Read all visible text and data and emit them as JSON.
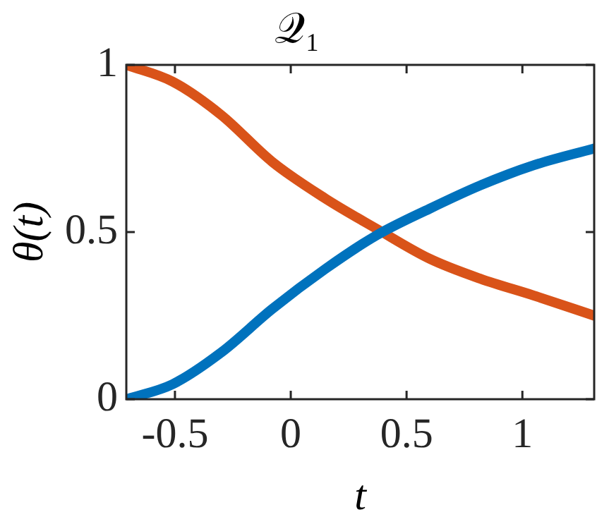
{
  "chart_data": {
    "type": "line",
    "title": "𝒬₁",
    "xlabel": "t",
    "ylabel": "θ(t)",
    "xlim": [
      -0.71,
      1.31
    ],
    "xticks": [
      -0.5,
      0,
      0.5,
      1
    ],
    "ylim": [
      0,
      1
    ],
    "yticks": [
      0,
      0.5,
      1
    ],
    "grid": false,
    "legend": false,
    "marker": "none",
    "line_style": "solid",
    "series": [
      {
        "color": "#0072bd",
        "x": [
          -0.71,
          -0.51,
          -0.3,
          -0.08,
          0.15,
          0.37,
          0.6,
          0.82,
          1.05,
          1.31
        ],
        "values": [
          0,
          0.045,
          0.14,
          0.27,
          0.39,
          0.49,
          0.57,
          0.64,
          0.7,
          0.75
        ]
      },
      {
        "color": "#d95319",
        "x": [
          -0.71,
          -0.51,
          -0.3,
          -0.08,
          0.15,
          0.37,
          0.6,
          0.82,
          1.05,
          1.31
        ],
        "values": [
          1,
          0.95,
          0.85,
          0.71,
          0.6,
          0.51,
          0.42,
          0.36,
          0.31,
          0.25
        ]
      }
    ]
  }
}
